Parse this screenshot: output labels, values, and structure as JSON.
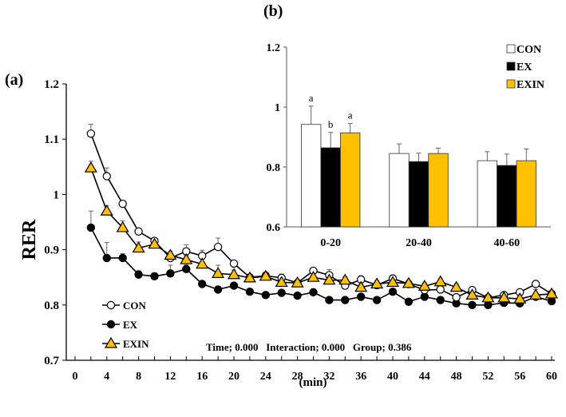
{
  "chart_data": [
    {
      "type": "line",
      "panel_label": "(a)",
      "title": "",
      "xlabel": "(min)",
      "ylabel": "RER",
      "xlim": [
        0,
        60
      ],
      "ylim": [
        0.7,
        1.2
      ],
      "xticks": [
        "0",
        "4",
        "8",
        "12",
        "16",
        "20",
        "24",
        "28",
        "32",
        "36",
        "40",
        "44",
        "48",
        "52",
        "56",
        "60"
      ],
      "yticks": [
        "0.7",
        "0.8",
        "0.9",
        "1",
        "1.1",
        "1.2"
      ],
      "grid": false,
      "legend_position": "bottom-left",
      "annotation": "Time; 0.000   Interaction; 0.000   Group; 0.386",
      "x": [
        2,
        4,
        6,
        8,
        10,
        12,
        14,
        16,
        18,
        20,
        22,
        24,
        26,
        28,
        30,
        32,
        34,
        36,
        38,
        40,
        42,
        44,
        46,
        48,
        50,
        52,
        54,
        56,
        58,
        60
      ],
      "series": [
        {
          "name": "CON",
          "marker": "circle-open",
          "color": "#ffffff",
          "values": [
            1.11,
            1.033,
            0.983,
            0.933,
            0.916,
            0.885,
            0.897,
            0.889,
            0.905,
            0.875,
            0.85,
            0.853,
            0.849,
            0.84,
            0.862,
            0.854,
            0.835,
            0.846,
            0.836,
            0.848,
            0.838,
            0.827,
            0.828,
            0.814,
            0.827,
            0.813,
            0.818,
            0.823,
            0.838,
            0.82
          ],
          "sem": [
            0.017,
            0.015,
            0.006,
            0.004,
            0.006,
            0.006,
            0.012,
            0.01,
            0.016,
            0.006,
            0.004,
            0.006,
            0.007,
            0.005,
            0.005,
            0.01,
            0.006,
            0.007,
            0.005,
            0.006,
            0.005,
            0.006,
            0.004,
            0.006,
            0.005,
            0.004,
            0.004,
            0.004,
            0.006,
            0.004
          ]
        },
        {
          "name": "EX",
          "marker": "circle-filled",
          "color": "#000000",
          "values": [
            0.94,
            0.885,
            0.885,
            0.855,
            0.852,
            0.857,
            0.865,
            0.838,
            0.828,
            0.835,
            0.824,
            0.818,
            0.822,
            0.817,
            0.823,
            0.809,
            0.809,
            0.815,
            0.809,
            0.824,
            0.806,
            0.815,
            0.809,
            0.803,
            0.8,
            0.8,
            0.804,
            0.803,
            0.815,
            0.807
          ],
          "sem": [
            0.03,
            0.028,
            0.008,
            0.007,
            0.006,
            0.015,
            0.008,
            0.006,
            0.006,
            0.005,
            0.005,
            0.005,
            0.004,
            0.004,
            0.006,
            0.004,
            0.004,
            0.005,
            0.004,
            0.005,
            0.004,
            0.005,
            0.004,
            0.004,
            0.004,
            0.004,
            0.004,
            0.004,
            0.004,
            0.004
          ]
        },
        {
          "name": "EXIN",
          "marker": "triangle",
          "color": "#ffc000",
          "values": [
            1.048,
            0.97,
            0.94,
            0.903,
            0.91,
            0.89,
            0.882,
            0.874,
            0.857,
            0.855,
            0.849,
            0.852,
            0.841,
            0.84,
            0.85,
            0.845,
            0.845,
            0.832,
            0.838,
            0.841,
            0.839,
            0.834,
            0.842,
            0.832,
            0.818,
            0.813,
            0.813,
            0.811,
            0.818,
            0.82
          ],
          "sem": [
            0.012,
            0.01,
            0.012,
            0.011,
            0.006,
            0.007,
            0.007,
            0.018,
            0.015,
            0.008,
            0.006,
            0.006,
            0.006,
            0.006,
            0.007,
            0.01,
            0.006,
            0.006,
            0.006,
            0.006,
            0.006,
            0.006,
            0.006,
            0.006,
            0.006,
            0.006,
            0.006,
            0.006,
            0.01,
            0.006
          ]
        }
      ]
    },
    {
      "type": "bar",
      "panel_label": "(b)",
      "categories": [
        "0-20",
        "20-40",
        "40-60"
      ],
      "ylim": [
        0.6,
        1.2
      ],
      "yticks": [
        "0.6",
        "0.8",
        "1",
        "1.2"
      ],
      "grid": false,
      "legend_position": "top-right",
      "series": [
        {
          "name": "CON",
          "color": "#ffffff",
          "values": [
            0.942,
            0.845,
            0.821
          ],
          "err": [
            0.061,
            0.032,
            0.03
          ],
          "letters": [
            "a",
            "",
            ""
          ]
        },
        {
          "name": "EX",
          "color": "#000000",
          "values": [
            0.864,
            0.818,
            0.805
          ],
          "err": [
            0.051,
            0.028,
            0.038
          ],
          "letters": [
            "b",
            "",
            ""
          ]
        },
        {
          "name": "EXIN",
          "color": "#ffc000",
          "values": [
            0.914,
            0.845,
            0.821
          ],
          "err": [
            0.031,
            0.018,
            0.039
          ],
          "letters": [
            "a",
            "",
            ""
          ]
        }
      ]
    }
  ]
}
